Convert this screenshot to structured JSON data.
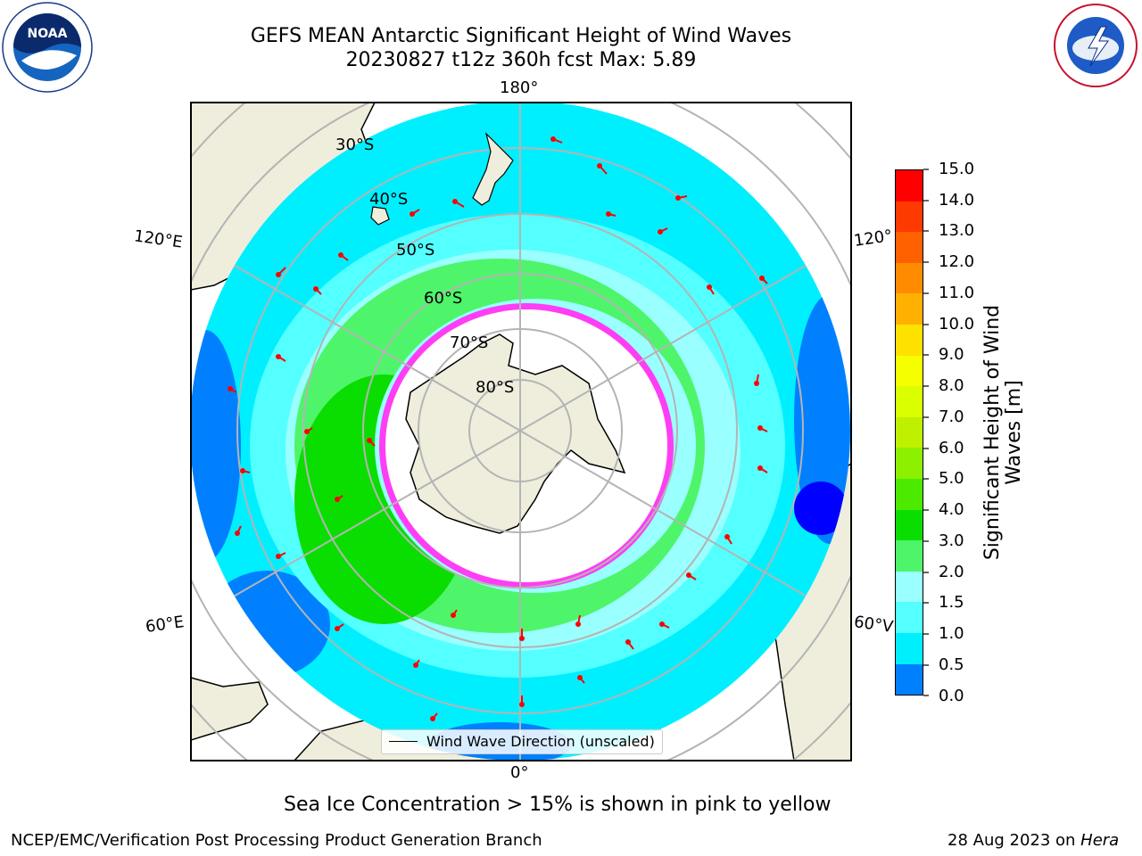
{
  "title": {
    "line1": "GEFS MEAN Antarctic Significant Height of Wind Waves",
    "line2": "20230827 t12z 360h fcst   Max: 5.89"
  },
  "map": {
    "meridian_labels": {
      "top": "180°",
      "bottom": "0°",
      "upper_left": "120°E",
      "upper_right": "120°",
      "lower_left": "60°E",
      "lower_right": "60°V"
    },
    "parallel_labels": [
      "30°S",
      "40°S",
      "50°S",
      "60°S",
      "70°S",
      "80°S"
    ],
    "legend_label": "Wind Wave Direction (unscaled)",
    "colors": {
      "land": "#efeedc",
      "coast": "#000000",
      "grid": "#b4b4b4",
      "arrow": "#ff0000",
      "ice_pink": "#ff3df5"
    }
  },
  "colorbar": {
    "label_line1": "Significant Height of Wind",
    "label_line2": "Waves [m]",
    "ticks": [
      "15.0",
      "14.0",
      "13.0",
      "12.0",
      "11.0",
      "10.0",
      "9.0",
      "8.0",
      "7.0",
      "6.0",
      "5.0",
      "4.0",
      "3.0",
      "2.0",
      "1.5",
      "1.0",
      "0.5",
      "0.0"
    ],
    "colors": [
      "#ff0000",
      "#ff3a00",
      "#ff6100",
      "#ff8c00",
      "#ffb000",
      "#ffe100",
      "#f6ff00",
      "#d9ff00",
      "#bff000",
      "#8cf000",
      "#4dea00",
      "#0ade00",
      "#4ef56a",
      "#9affff",
      "#54ffff",
      "#00efff",
      "#0080ff",
      "#0000ff"
    ]
  },
  "logos": {
    "noaa_text": "NOAA",
    "noaa_ring": "NATIONAL OCEANIC AND ATMOSPHERIC ADMINISTRATION • U.S. DEPARTMENT OF COMMERCE",
    "nws_ring": "NATIONAL WEATHER SERVICE"
  },
  "note": "Sea Ice Concentration > 15% is shown in pink to yellow",
  "footer": {
    "left": "NCEP/EMC/Verification Post Processing Product Generation Branch",
    "right_prefix": "28 Aug 2023 on ",
    "right_host": "Hera"
  }
}
